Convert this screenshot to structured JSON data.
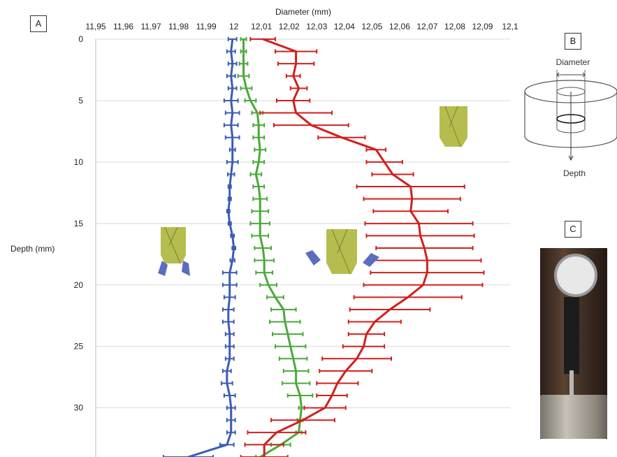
{
  "panels": {
    "a": "A",
    "b": "B",
    "c": "C"
  },
  "diagram_b": {
    "diameter_label": "Diameter",
    "depth_label": "Depth"
  },
  "colors": {
    "blue": "#3c5bb5",
    "green": "#4aa93a",
    "red": "#d0201e",
    "drill": "#b5bd4e",
    "insert": "#5a6ebe",
    "grid": "#d9d9d9"
  },
  "icons": [
    "drill-bit-icon",
    "drill-with-inserts-icon",
    "bore-gauge-photo"
  ],
  "chart_data": {
    "type": "line",
    "title": "",
    "xlabel": "Diameter (mm)",
    "ylabel": "Depth (mm)",
    "xlim": [
      11.95,
      12.1
    ],
    "ylim": [
      0,
      34
    ],
    "y_inverted": true,
    "x_axis_position": "top",
    "grid": "horizontal",
    "x_ticks": [
      "11,95",
      "11,96",
      "11,97",
      "11,98",
      "11,99",
      "12",
      "12,01",
      "12,02",
      "12,03",
      "12,04",
      "12,05",
      "12,06",
      "12,07",
      "12,08",
      "12,09",
      "12,1"
    ],
    "y_ticks": [
      "0",
      "5",
      "10",
      "15",
      "20",
      "25",
      "30"
    ],
    "series": [
      {
        "color": "#3c5bb5",
        "depth": [
          0,
          1,
          2,
          3,
          4,
          5,
          6,
          7,
          8,
          9,
          10,
          11,
          12,
          13,
          14,
          15,
          16,
          17,
          18,
          19,
          20,
          21,
          22,
          23,
          24,
          25,
          26,
          27,
          28,
          29,
          30,
          31,
          32,
          33,
          34
        ],
        "diameter": [
          11.9995,
          11.999,
          11.9995,
          11.999,
          11.9995,
          11.999,
          11.9995,
          11.999,
          11.9995,
          11.9995,
          11.9995,
          11.999,
          11.9985,
          11.9985,
          11.998,
          11.9985,
          11.9995,
          12.0,
          11.9995,
          11.9985,
          11.9985,
          11.9985,
          11.998,
          11.998,
          11.9985,
          11.9985,
          11.9985,
          11.9975,
          11.9975,
          11.9985,
          11.999,
          11.999,
          11.999,
          11.9975,
          11.9835
        ],
        "error": [
          0.0015,
          0.0015,
          0.0015,
          0.0015,
          0.0015,
          0.0025,
          0.0025,
          0.0025,
          0.0025,
          0.001,
          0.002,
          0.0012,
          0.0005,
          0.0005,
          0.0005,
          0.0005,
          0.0006,
          0.0006,
          0.0008,
          0.0025,
          0.0025,
          0.002,
          0.002,
          0.002,
          0.0015,
          0.0015,
          0.0015,
          0.0015,
          0.002,
          0.002,
          0.0015,
          0.0015,
          0.0015,
          0.0025,
          0.009
        ]
      },
      {
        "color": "#4aa93a",
        "depth": [
          0,
          1,
          2,
          3,
          4,
          5,
          6,
          7,
          8,
          9,
          10,
          11,
          12,
          13,
          14,
          15,
          16,
          17,
          18,
          19,
          20,
          21,
          22,
          23,
          24,
          25,
          26,
          27,
          28,
          29,
          30,
          31,
          32,
          33,
          34
        ],
        "diameter": [
          12.0035,
          12.0035,
          12.0035,
          12.0035,
          12.0045,
          12.006,
          12.0085,
          12.009,
          12.009,
          12.0095,
          12.009,
          12.008,
          12.009,
          12.0095,
          12.0095,
          12.0095,
          12.0095,
          12.0105,
          12.011,
          12.011,
          12.0125,
          12.015,
          12.018,
          12.0185,
          12.0195,
          12.0205,
          12.0215,
          12.0225,
          12.0225,
          12.024,
          12.0245,
          12.024,
          12.0235,
          12.017,
          12.0095
        ],
        "error": [
          0.001,
          0.001,
          0.0015,
          0.002,
          0.002,
          0.002,
          0.002,
          0.002,
          0.002,
          0.002,
          0.002,
          0.002,
          0.002,
          0.0025,
          0.003,
          0.0035,
          0.003,
          0.003,
          0.0035,
          0.003,
          0.003,
          0.003,
          0.0045,
          0.0055,
          0.0055,
          0.0055,
          0.005,
          0.0045,
          0.005,
          0.0045,
          0.001,
          0.001,
          0.001,
          0.0035,
          0.0015
        ]
      },
      {
        "color": "#d0201e",
        "depth": [
          0,
          1,
          2,
          3,
          4,
          5,
          6,
          7,
          8,
          9,
          10,
          11,
          12,
          13,
          14,
          15,
          16,
          17,
          18,
          19,
          20,
          21,
          22,
          23,
          24,
          25,
          26,
          27,
          28,
          29,
          30,
          31,
          32,
          33,
          34
        ],
        "diameter": [
          12.0105,
          12.0225,
          12.0225,
          12.0215,
          12.0235,
          12.0215,
          12.0225,
          12.028,
          12.039,
          12.0515,
          12.0545,
          12.0575,
          12.064,
          12.0645,
          12.064,
          12.067,
          12.0675,
          12.069,
          12.07,
          12.07,
          12.0685,
          12.063,
          12.0565,
          12.051,
          12.048,
          12.047,
          12.0445,
          12.0405,
          12.0375,
          12.0355,
          12.033,
          12.025,
          12.0155,
          12.011,
          12.011
        ],
        "error": [
          0.0045,
          0.0075,
          0.0065,
          0.0025,
          0.003,
          0.006,
          0.013,
          0.0135,
          0.0085,
          0.0035,
          0.0065,
          0.0075,
          0.0195,
          0.0175,
          0.0135,
          0.0195,
          0.0195,
          0.0175,
          0.0195,
          0.0205,
          0.0215,
          0.0195,
          0.0145,
          0.0095,
          0.0065,
          0.0075,
          0.0125,
          0.0095,
          0.0075,
          0.0055,
          0.0075,
          0.0115,
          0.0105,
          0.007,
          0.0085
        ]
      }
    ]
  }
}
